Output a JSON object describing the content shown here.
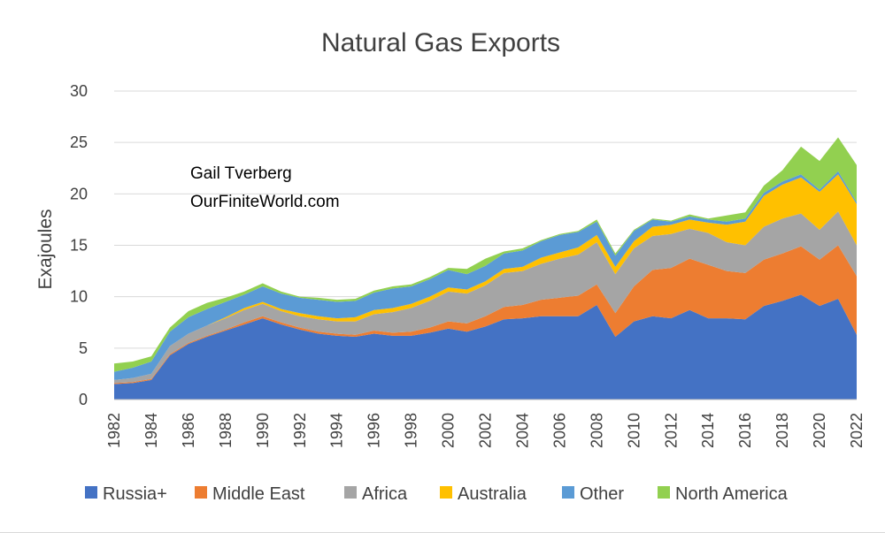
{
  "chart_data": {
    "type": "area",
    "stacked": true,
    "title": "Natural Gas Exports",
    "ylabel": "Exajoules",
    "xlabel": "",
    "ylim": [
      0,
      30
    ],
    "yticks": [
      0,
      5,
      10,
      15,
      20,
      25,
      30
    ],
    "grid": true,
    "legend_position": "bottom",
    "annotations": [
      "Gail Tverberg",
      "OurFiniteWorld.com"
    ],
    "x": [
      1982,
      1983,
      1984,
      1985,
      1986,
      1987,
      1988,
      1989,
      1990,
      1991,
      1992,
      1993,
      1994,
      1995,
      1996,
      1997,
      1998,
      1999,
      2000,
      2001,
      2002,
      2003,
      2004,
      2005,
      2006,
      2007,
      2008,
      2009,
      2010,
      2011,
      2012,
      2013,
      2014,
      2015,
      2016,
      2017,
      2018,
      2019,
      2020,
      2021,
      2022
    ],
    "xtick_labels": [
      "1982",
      "1984",
      "1986",
      "1988",
      "1990",
      "1992",
      "1994",
      "1996",
      "1998",
      "2000",
      "2002",
      "2004",
      "2006",
      "2008",
      "2010",
      "2012",
      "2014",
      "2016",
      "2018",
      "2020",
      "2022"
    ],
    "series": [
      {
        "name": "Russia+",
        "color": "#4472C4",
        "values": [
          1.5,
          1.6,
          1.9,
          4.3,
          5.4,
          6.1,
          6.7,
          7.3,
          7.9,
          7.3,
          6.8,
          6.4,
          6.2,
          6.1,
          6.4,
          6.2,
          6.2,
          6.5,
          6.9,
          6.6,
          7.1,
          7.8,
          7.9,
          8.1,
          8.1,
          8.1,
          9.2,
          6.1,
          7.6,
          8.1,
          7.9,
          8.7,
          7.9,
          7.9,
          7.8,
          9.1,
          9.6,
          10.2,
          9.1,
          9.8,
          6.3
        ]
      },
      {
        "name": "Middle East",
        "color": "#ED7D31",
        "values": [
          0.1,
          0.1,
          0.1,
          0.1,
          0.1,
          0.1,
          0.1,
          0.2,
          0.2,
          0.2,
          0.2,
          0.2,
          0.2,
          0.2,
          0.3,
          0.3,
          0.4,
          0.5,
          0.7,
          0.8,
          1.0,
          1.2,
          1.3,
          1.6,
          1.8,
          2.0,
          2.0,
          2.3,
          3.4,
          4.5,
          4.9,
          5.0,
          5.2,
          4.6,
          4.5,
          4.5,
          4.6,
          4.7,
          4.5,
          5.2,
          5.7
        ]
      },
      {
        "name": "Africa",
        "color": "#A5A5A5",
        "values": [
          0.3,
          0.4,
          0.5,
          0.8,
          0.9,
          1.0,
          1.1,
          1.2,
          1.2,
          1.1,
          1.1,
          1.2,
          1.2,
          1.3,
          1.6,
          2.0,
          2.3,
          2.6,
          2.9,
          2.9,
          3.0,
          3.3,
          3.3,
          3.5,
          3.8,
          4.0,
          4.1,
          3.8,
          3.7,
          3.3,
          3.3,
          2.9,
          3.1,
          2.8,
          2.7,
          3.2,
          3.4,
          3.2,
          2.9,
          3.3,
          3.0
        ]
      },
      {
        "name": "Australia",
        "color": "#FFC000",
        "values": [
          0.0,
          0.0,
          0.0,
          0.0,
          0.0,
          0.0,
          0.1,
          0.2,
          0.2,
          0.2,
          0.3,
          0.3,
          0.3,
          0.4,
          0.4,
          0.4,
          0.4,
          0.4,
          0.4,
          0.4,
          0.4,
          0.4,
          0.4,
          0.6,
          0.6,
          0.7,
          0.7,
          0.7,
          0.7,
          0.9,
          0.9,
          0.9,
          1.0,
          1.7,
          2.3,
          3.0,
          3.3,
          3.5,
          3.7,
          3.6,
          4.0
        ]
      },
      {
        "name": "Other",
        "color": "#5B9BD5",
        "values": [
          0.8,
          1.0,
          1.2,
          1.4,
          1.6,
          1.6,
          1.5,
          1.3,
          1.5,
          1.5,
          1.5,
          1.6,
          1.6,
          1.6,
          1.7,
          1.9,
          1.7,
          1.7,
          1.7,
          1.5,
          1.5,
          1.5,
          1.6,
          1.6,
          1.7,
          1.5,
          1.3,
          1.1,
          1.0,
          0.7,
          0.3,
          0.3,
          0.3,
          0.3,
          0.3,
          0.3,
          0.3,
          0.3,
          0.2,
          0.3,
          0.2
        ]
      },
      {
        "name": "North America",
        "color": "#92D050",
        "values": [
          0.8,
          0.6,
          0.5,
          0.4,
          0.6,
          0.6,
          0.4,
          0.3,
          0.3,
          0.2,
          0.1,
          0.2,
          0.2,
          0.2,
          0.2,
          0.2,
          0.2,
          0.2,
          0.2,
          0.5,
          0.7,
          0.2,
          0.2,
          0.1,
          0.1,
          0.1,
          0.2,
          0.2,
          0.1,
          0.1,
          0.1,
          0.2,
          0.1,
          0.6,
          0.6,
          0.7,
          1.1,
          2.7,
          2.8,
          3.3,
          3.6
        ]
      }
    ]
  }
}
